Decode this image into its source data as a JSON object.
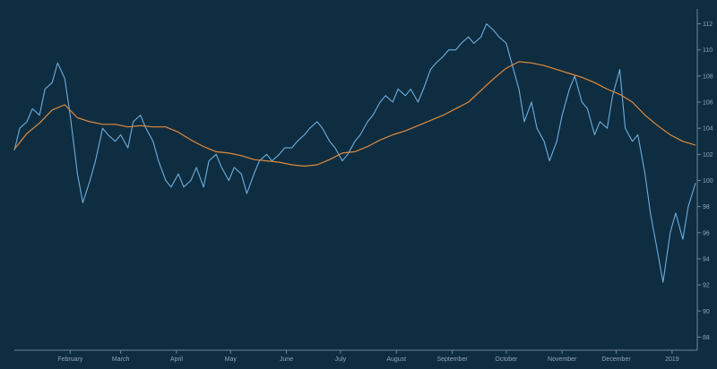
{
  "chart_data": {
    "type": "line",
    "title": "",
    "xlabel": "",
    "ylabel": "",
    "grid": false,
    "colors": {
      "background": "#0f2d40",
      "price": "#6aaee0",
      "moving_average": "#e08a3c",
      "axis": "#6d8799",
      "tick_text": "#8fa6b8"
    },
    "x_range": [
      "2018-01-01",
      "2019-01-15"
    ],
    "ylim": [
      87,
      113
    ],
    "y_ticks": [
      88,
      90,
      92,
      94,
      96,
      98,
      100,
      102,
      104,
      106,
      108,
      110,
      112
    ],
    "x_ticks": [
      {
        "date": "2018-02-01",
        "label": "February"
      },
      {
        "date": "2018-03-01",
        "label": "March"
      },
      {
        "date": "2018-04-01",
        "label": "April"
      },
      {
        "date": "2018-05-01",
        "label": "May"
      },
      {
        "date": "2018-06-01",
        "label": "June"
      },
      {
        "date": "2018-07-01",
        "label": "July"
      },
      {
        "date": "2018-08-01",
        "label": "August"
      },
      {
        "date": "2018-09-01",
        "label": "September"
      },
      {
        "date": "2018-10-01",
        "label": "October"
      },
      {
        "date": "2018-11-01",
        "label": "November"
      },
      {
        "date": "2018-12-01",
        "label": "December"
      },
      {
        "date": "2019-01-01",
        "label": "2019"
      }
    ],
    "series": [
      {
        "key": "price",
        "points": [
          [
            "2018-01-01",
            102.3
          ],
          [
            "2018-01-04",
            104.0
          ],
          [
            "2018-01-08",
            104.5
          ],
          [
            "2018-01-11",
            105.5
          ],
          [
            "2018-01-15",
            105.0
          ],
          [
            "2018-01-18",
            107.0
          ],
          [
            "2018-01-22",
            107.5
          ],
          [
            "2018-01-25",
            109.0
          ],
          [
            "2018-01-29",
            107.8
          ],
          [
            "2018-02-01",
            105.0
          ],
          [
            "2018-02-05",
            100.5
          ],
          [
            "2018-02-08",
            98.3
          ],
          [
            "2018-02-12",
            100.0
          ],
          [
            "2018-02-15",
            101.5
          ],
          [
            "2018-02-19",
            104.0
          ],
          [
            "2018-02-22",
            103.5
          ],
          [
            "2018-02-26",
            103.0
          ],
          [
            "2018-03-01",
            103.5
          ],
          [
            "2018-03-05",
            102.5
          ],
          [
            "2018-03-08",
            104.5
          ],
          [
            "2018-03-12",
            105.0
          ],
          [
            "2018-03-15",
            104.0
          ],
          [
            "2018-03-19",
            103.0
          ],
          [
            "2018-03-22",
            101.5
          ],
          [
            "2018-03-26",
            100.0
          ],
          [
            "2018-03-29",
            99.5
          ],
          [
            "2018-04-02",
            100.5
          ],
          [
            "2018-04-05",
            99.5
          ],
          [
            "2018-04-09",
            100.0
          ],
          [
            "2018-04-12",
            101.0
          ],
          [
            "2018-04-16",
            99.5
          ],
          [
            "2018-04-19",
            101.5
          ],
          [
            "2018-04-23",
            102.0
          ],
          [
            "2018-04-26",
            101.0
          ],
          [
            "2018-04-30",
            100.0
          ],
          [
            "2018-05-03",
            101.0
          ],
          [
            "2018-05-07",
            100.5
          ],
          [
            "2018-05-10",
            99.0
          ],
          [
            "2018-05-14",
            100.5
          ],
          [
            "2018-05-17",
            101.5
          ],
          [
            "2018-05-21",
            102.0
          ],
          [
            "2018-05-24",
            101.5
          ],
          [
            "2018-05-28",
            102.0
          ],
          [
            "2018-05-31",
            102.5
          ],
          [
            "2018-06-04",
            102.5
          ],
          [
            "2018-06-07",
            103.0
          ],
          [
            "2018-06-11",
            103.5
          ],
          [
            "2018-06-14",
            104.0
          ],
          [
            "2018-06-18",
            104.5
          ],
          [
            "2018-06-21",
            104.0
          ],
          [
            "2018-06-25",
            103.0
          ],
          [
            "2018-06-28",
            102.5
          ],
          [
            "2018-07-02",
            101.5
          ],
          [
            "2018-07-05",
            102.0
          ],
          [
            "2018-07-09",
            103.0
          ],
          [
            "2018-07-12",
            103.5
          ],
          [
            "2018-07-16",
            104.5
          ],
          [
            "2018-07-19",
            105.0
          ],
          [
            "2018-07-23",
            106.0
          ],
          [
            "2018-07-26",
            106.5
          ],
          [
            "2018-07-30",
            106.0
          ],
          [
            "2018-08-02",
            107.0
          ],
          [
            "2018-08-06",
            106.5
          ],
          [
            "2018-08-09",
            107.0
          ],
          [
            "2018-08-13",
            106.0
          ],
          [
            "2018-08-16",
            107.0
          ],
          [
            "2018-08-20",
            108.5
          ],
          [
            "2018-08-23",
            109.0
          ],
          [
            "2018-08-27",
            109.5
          ],
          [
            "2018-08-30",
            110.0
          ],
          [
            "2018-09-03",
            110.0
          ],
          [
            "2018-09-06",
            110.5
          ],
          [
            "2018-09-10",
            111.0
          ],
          [
            "2018-09-13",
            110.5
          ],
          [
            "2018-09-17",
            111.0
          ],
          [
            "2018-09-20",
            112.0
          ],
          [
            "2018-09-24",
            111.5
          ],
          [
            "2018-09-27",
            111.0
          ],
          [
            "2018-10-01",
            110.5
          ],
          [
            "2018-10-04",
            109.0
          ],
          [
            "2018-10-08",
            107.0
          ],
          [
            "2018-10-11",
            104.5
          ],
          [
            "2018-10-15",
            106.0
          ],
          [
            "2018-10-18",
            104.0
          ],
          [
            "2018-10-22",
            103.0
          ],
          [
            "2018-10-25",
            101.5
          ],
          [
            "2018-10-29",
            103.0
          ],
          [
            "2018-11-01",
            105.0
          ],
          [
            "2018-11-05",
            107.0
          ],
          [
            "2018-11-08",
            108.0
          ],
          [
            "2018-11-12",
            106.0
          ],
          [
            "2018-11-15",
            105.5
          ],
          [
            "2018-11-19",
            103.5
          ],
          [
            "2018-11-22",
            104.5
          ],
          [
            "2018-11-26",
            104.0
          ],
          [
            "2018-11-29",
            106.5
          ],
          [
            "2018-12-03",
            108.5
          ],
          [
            "2018-12-06",
            104.0
          ],
          [
            "2018-12-10",
            103.0
          ],
          [
            "2018-12-13",
            103.5
          ],
          [
            "2018-12-17",
            100.5
          ],
          [
            "2018-12-20",
            97.5
          ],
          [
            "2018-12-24",
            94.5
          ],
          [
            "2018-12-27",
            92.2
          ],
          [
            "2018-12-31",
            96.0
          ],
          [
            "2019-01-03",
            97.5
          ],
          [
            "2019-01-07",
            95.5
          ],
          [
            "2019-01-10",
            98.0
          ],
          [
            "2019-01-14",
            99.8
          ]
        ]
      },
      {
        "key": "moving_average",
        "points": [
          [
            "2018-01-01",
            102.4
          ],
          [
            "2018-01-08",
            103.6
          ],
          [
            "2018-01-15",
            104.4
          ],
          [
            "2018-01-22",
            105.4
          ],
          [
            "2018-01-29",
            105.8
          ],
          [
            "2018-02-05",
            104.8
          ],
          [
            "2018-02-12",
            104.5
          ],
          [
            "2018-02-19",
            104.3
          ],
          [
            "2018-02-26",
            104.3
          ],
          [
            "2018-03-05",
            104.1
          ],
          [
            "2018-03-12",
            104.2
          ],
          [
            "2018-03-19",
            104.1
          ],
          [
            "2018-03-26",
            104.1
          ],
          [
            "2018-04-02",
            103.7
          ],
          [
            "2018-04-09",
            103.1
          ],
          [
            "2018-04-16",
            102.6
          ],
          [
            "2018-04-23",
            102.2
          ],
          [
            "2018-04-30",
            102.1
          ],
          [
            "2018-05-07",
            101.9
          ],
          [
            "2018-05-14",
            101.6
          ],
          [
            "2018-05-21",
            101.5
          ],
          [
            "2018-05-28",
            101.4
          ],
          [
            "2018-06-04",
            101.2
          ],
          [
            "2018-06-11",
            101.1
          ],
          [
            "2018-06-18",
            101.2
          ],
          [
            "2018-06-25",
            101.6
          ],
          [
            "2018-07-02",
            102.1
          ],
          [
            "2018-07-09",
            102.2
          ],
          [
            "2018-07-16",
            102.6
          ],
          [
            "2018-07-23",
            103.1
          ],
          [
            "2018-07-30",
            103.5
          ],
          [
            "2018-08-06",
            103.8
          ],
          [
            "2018-08-13",
            104.2
          ],
          [
            "2018-08-20",
            104.6
          ],
          [
            "2018-08-27",
            105.0
          ],
          [
            "2018-09-03",
            105.5
          ],
          [
            "2018-09-10",
            106.0
          ],
          [
            "2018-09-17",
            106.9
          ],
          [
            "2018-09-24",
            107.8
          ],
          [
            "2018-10-01",
            108.6
          ],
          [
            "2018-10-08",
            109.1
          ],
          [
            "2018-10-15",
            109.0
          ],
          [
            "2018-10-22",
            108.8
          ],
          [
            "2018-10-29",
            108.5
          ],
          [
            "2018-11-05",
            108.2
          ],
          [
            "2018-11-12",
            107.9
          ],
          [
            "2018-11-19",
            107.5
          ],
          [
            "2018-11-26",
            107.0
          ],
          [
            "2018-12-03",
            106.6
          ],
          [
            "2018-12-10",
            106.0
          ],
          [
            "2018-12-17",
            105.0
          ],
          [
            "2018-12-24",
            104.2
          ],
          [
            "2018-12-31",
            103.5
          ],
          [
            "2019-01-07",
            103.0
          ],
          [
            "2019-01-14",
            102.7
          ]
        ]
      }
    ]
  }
}
